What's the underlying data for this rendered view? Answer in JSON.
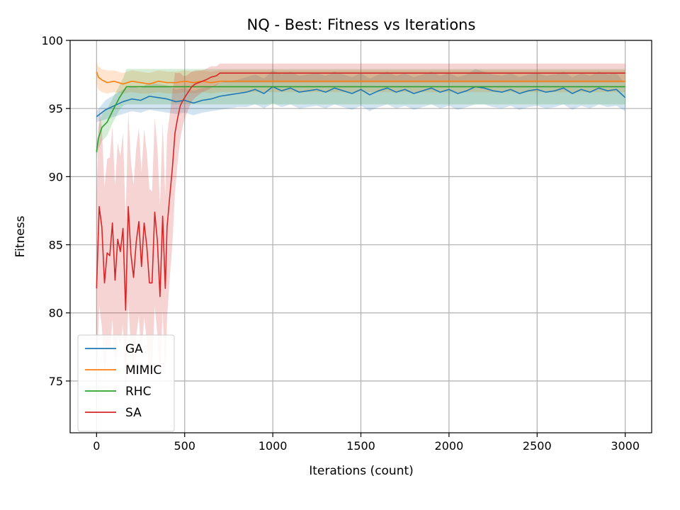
{
  "chart_data": {
    "type": "line",
    "title": "NQ - Best: Fitness vs Iterations",
    "xlabel": "Iterations (count)",
    "ylabel": "Fitness",
    "xlim": [
      -150,
      3150
    ],
    "ylim": [
      71.2,
      100
    ],
    "xticks": [
      0,
      500,
      1000,
      1500,
      2000,
      2500,
      3000
    ],
    "yticks": [
      75,
      80,
      85,
      90,
      95,
      100
    ],
    "grid": true,
    "legend": "lower-left",
    "series": [
      {
        "name": "GA",
        "color": "#1f77b4",
        "x": [
          0,
          50,
          100,
          150,
          200,
          250,
          300,
          350,
          400,
          450,
          500,
          550,
          600,
          650,
          700,
          750,
          800,
          850,
          900,
          950,
          1000,
          1050,
          1100,
          1150,
          1200,
          1250,
          1300,
          1350,
          1400,
          1450,
          1500,
          1550,
          1600,
          1650,
          1700,
          1750,
          1800,
          1850,
          1900,
          1950,
          2000,
          2050,
          2100,
          2150,
          2200,
          2250,
          2300,
          2350,
          2400,
          2450,
          2500,
          2550,
          2600,
          2650,
          2700,
          2750,
          2800,
          2850,
          2900,
          2950,
          3000
        ],
        "y": [
          94.4,
          94.9,
          95.2,
          95.5,
          95.7,
          95.6,
          95.9,
          95.8,
          95.7,
          95.5,
          95.6,
          95.4,
          95.6,
          95.7,
          95.9,
          96.0,
          96.1,
          96.2,
          96.4,
          96.1,
          96.6,
          96.3,
          96.5,
          96.2,
          96.3,
          96.4,
          96.2,
          96.5,
          96.3,
          96.1,
          96.4,
          96.0,
          96.3,
          96.5,
          96.2,
          96.4,
          96.1,
          96.3,
          96.5,
          96.2,
          96.4,
          96.1,
          96.3,
          96.6,
          96.5,
          96.3,
          96.2,
          96.4,
          96.1,
          96.3,
          96.4,
          96.2,
          96.3,
          96.5,
          96.1,
          96.4,
          96.2,
          96.5,
          96.3,
          96.4,
          95.8
        ],
        "lower": [
          94.0,
          94.2,
          94.4,
          94.6,
          94.8,
          94.7,
          94.9,
          94.8,
          94.7,
          94.6,
          94.7,
          94.5,
          94.7,
          94.8,
          94.9,
          95.0,
          95.1,
          95.1,
          95.3,
          95.0,
          95.4,
          95.1,
          95.3,
          95.0,
          95.1,
          95.2,
          95.0,
          95.3,
          95.1,
          94.9,
          95.2,
          94.8,
          95.1,
          95.3,
          95.0,
          95.2,
          94.9,
          95.1,
          95.3,
          95.0,
          95.2,
          94.9,
          95.1,
          95.3,
          95.3,
          95.1,
          95.0,
          95.2,
          94.9,
          95.1,
          95.2,
          95.0,
          95.1,
          95.3,
          94.9,
          95.2,
          95.0,
          95.3,
          95.1,
          95.2,
          94.8
        ],
        "upper": [
          94.8,
          95.6,
          96.0,
          96.4,
          96.6,
          96.5,
          96.9,
          96.8,
          96.7,
          96.4,
          96.5,
          96.3,
          96.5,
          96.6,
          96.9,
          97.0,
          97.1,
          97.3,
          97.5,
          97.2,
          97.8,
          97.5,
          97.7,
          97.4,
          97.5,
          97.6,
          97.4,
          97.7,
          97.5,
          97.3,
          97.6,
          97.2,
          97.5,
          97.7,
          97.4,
          97.6,
          97.3,
          97.5,
          97.7,
          97.4,
          97.6,
          97.3,
          97.5,
          97.9,
          97.7,
          97.5,
          97.4,
          97.6,
          97.3,
          97.5,
          97.6,
          97.4,
          97.5,
          97.7,
          97.3,
          97.6,
          97.4,
          97.7,
          97.5,
          97.6,
          96.8
        ]
      },
      {
        "name": "MIMIC",
        "color": "#ff7f0e",
        "x": [
          0,
          10,
          30,
          60,
          100,
          150,
          200,
          250,
          300,
          350,
          400,
          450,
          500,
          550,
          600,
          650,
          700,
          750,
          800,
          1000,
          1500,
          2000,
          2500,
          3000
        ],
        "y": [
          97.7,
          97.3,
          97.1,
          96.9,
          97.0,
          96.8,
          97.0,
          96.9,
          96.8,
          97.0,
          96.9,
          96.9,
          97.0,
          96.9,
          97.0,
          96.9,
          97.0,
          97.0,
          97.0,
          97.0,
          97.0,
          97.0,
          97.0,
          97.0
        ],
        "lower": [
          96.8,
          96.4,
          96.2,
          96.1,
          96.2,
          96.1,
          96.2,
          96.1,
          96.1,
          96.2,
          96.1,
          96.1,
          96.2,
          96.1,
          96.2,
          96.1,
          96.2,
          96.2,
          96.2,
          96.2,
          96.2,
          96.2,
          96.2,
          96.2
        ],
        "upper": [
          98.4,
          98.1,
          97.9,
          97.8,
          97.8,
          97.6,
          97.8,
          97.7,
          97.6,
          97.8,
          97.7,
          97.7,
          97.8,
          97.7,
          97.8,
          97.7,
          97.8,
          97.8,
          97.8,
          97.8,
          97.8,
          97.8,
          97.8,
          97.8
        ]
      },
      {
        "name": "RHC",
        "color": "#2ca02c",
        "x": [
          0,
          10,
          30,
          60,
          90,
          110,
          130,
          150,
          170,
          200,
          300,
          400,
          500,
          600,
          700,
          1000,
          1500,
          2000,
          2500,
          3000
        ],
        "y": [
          91.8,
          92.8,
          93.6,
          94.0,
          94.8,
          95.3,
          95.8,
          96.2,
          96.6,
          96.6,
          96.6,
          96.6,
          96.6,
          96.6,
          96.6,
          96.6,
          96.6,
          96.6,
          96.6,
          96.6
        ],
        "lower": [
          91.3,
          92.0,
          92.6,
          93.0,
          93.9,
          94.4,
          94.9,
          95.2,
          95.3,
          95.3,
          95.3,
          95.3,
          95.3,
          95.3,
          95.3,
          95.3,
          95.3,
          95.3,
          95.3,
          95.3
        ],
        "upper": [
          92.3,
          93.6,
          94.6,
          95.0,
          95.7,
          96.2,
          96.7,
          97.2,
          97.9,
          97.9,
          97.9,
          97.9,
          97.9,
          97.9,
          97.9,
          97.9,
          97.9,
          97.9,
          97.9,
          97.9
        ]
      },
      {
        "name": "SA",
        "color": "#d62728",
        "x": [
          0,
          15,
          30,
          45,
          60,
          75,
          90,
          105,
          120,
          135,
          150,
          165,
          180,
          195,
          210,
          225,
          240,
          255,
          270,
          285,
          300,
          315,
          330,
          345,
          360,
          375,
          390,
          400,
          415,
          430,
          445,
          460,
          475,
          490,
          505,
          520,
          540,
          560,
          580,
          600,
          620,
          650,
          680,
          700,
          750,
          1000,
          1500,
          2000,
          2500,
          3000
        ],
        "y": [
          81.8,
          87.8,
          86.3,
          82.2,
          84.4,
          84.2,
          86.6,
          82.4,
          85.4,
          84.5,
          86.2,
          80.2,
          87.8,
          84.3,
          82.6,
          85.2,
          86.7,
          83.4,
          86.6,
          84.9,
          82.2,
          82.2,
          87.4,
          85.3,
          81.2,
          87.1,
          81.8,
          86.3,
          88.5,
          90.6,
          93.2,
          94.3,
          95.2,
          95.6,
          95.9,
          96.2,
          96.6,
          96.8,
          96.9,
          97.0,
          97.1,
          97.3,
          97.4,
          97.6,
          97.6,
          97.6,
          97.6,
          97.6,
          97.6,
          97.6
        ],
        "lower": [
          75.0,
          80.5,
          79.0,
          75.2,
          77.5,
          77.0,
          79.5,
          75.5,
          78.3,
          77.5,
          79.2,
          73.5,
          80.8,
          77.5,
          75.8,
          78.3,
          79.8,
          76.5,
          79.7,
          78.0,
          75.3,
          75.5,
          80.5,
          78.4,
          74.5,
          80.2,
          75.0,
          79.6,
          82.5,
          85.0,
          88.8,
          91.0,
          92.8,
          93.8,
          94.4,
          94.9,
          95.5,
          95.8,
          96.0,
          96.2,
          96.3,
          96.5,
          96.7,
          96.9,
          96.9,
          96.9,
          96.9,
          96.9,
          96.9,
          96.9
        ],
        "upper": [
          88.6,
          95.0,
          93.6,
          89.2,
          91.3,
          91.4,
          93.7,
          89.3,
          92.5,
          91.5,
          93.2,
          86.9,
          94.8,
          91.1,
          89.4,
          92.1,
          93.6,
          90.3,
          93.5,
          91.8,
          89.1,
          88.9,
          94.3,
          92.2,
          87.9,
          94.0,
          88.6,
          93.0,
          94.5,
          96.2,
          97.6,
          97.6,
          97.6,
          97.4,
          97.4,
          97.5,
          97.7,
          97.8,
          97.8,
          97.8,
          97.9,
          98.1,
          98.1,
          98.3,
          98.3,
          98.3,
          98.3,
          98.3,
          98.3,
          98.3
        ]
      }
    ]
  }
}
